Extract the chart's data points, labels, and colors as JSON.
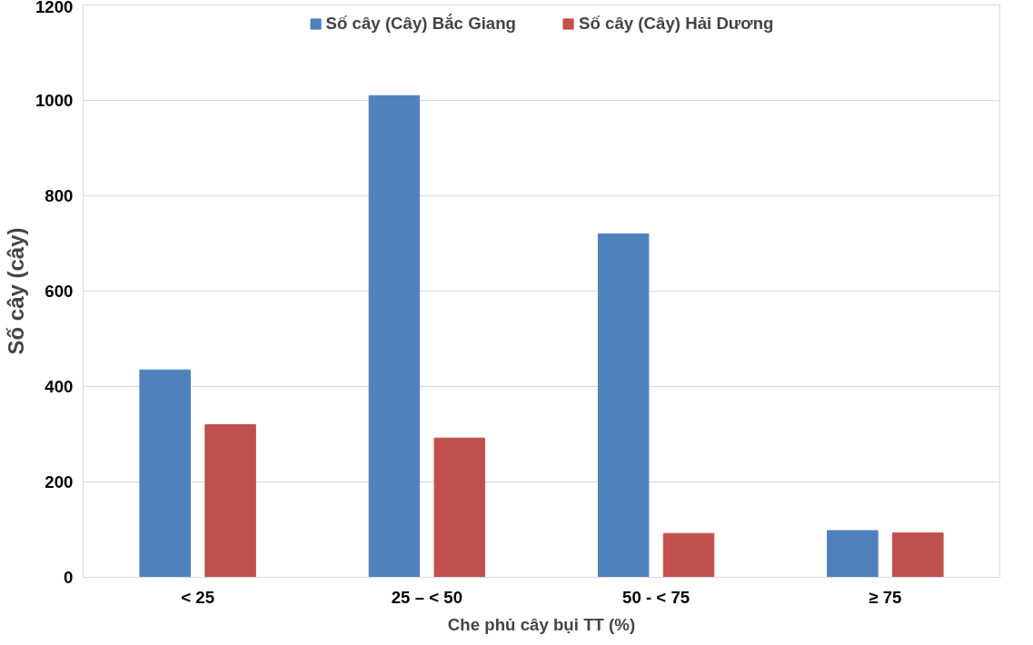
{
  "chart_data": {
    "type": "bar",
    "ylabel": "Số cây (cây)",
    "xlabel": "Che phủ cây bụi TT (%)",
    "categories": [
      "< 25",
      "25 – < 50",
      "50 - < 75",
      "≥ 75"
    ],
    "series": [
      {
        "name": "Số cây (Cây) Bắc Giang",
        "color": "#4f81bd",
        "values": [
          435,
          1010,
          720,
          98
        ]
      },
      {
        "name": "Số cây (Cây) Hải Dương",
        "color": "#c0504d",
        "values": [
          320,
          292,
          92,
          93
        ]
      }
    ],
    "ylim": [
      0,
      1200
    ],
    "yticks": [
      0,
      200,
      400,
      600,
      800,
      1000,
      1200
    ],
    "grid": "y",
    "legend": "top"
  }
}
